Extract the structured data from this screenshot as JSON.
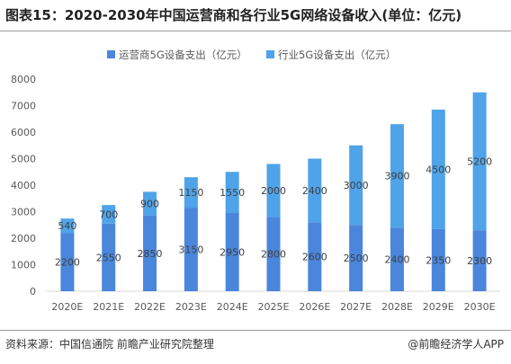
{
  "header": {
    "title": "图表15：2020-2030年中国运营商和各行业5G网络设备收入(单位：亿元)"
  },
  "footer": {
    "source": "资料来源：中国信通院 前瞻产业研究院整理",
    "brand": "@前瞻经济学人APP"
  },
  "colors": {
    "operator": "#4a86dc",
    "industry": "#4fa3e8",
    "axis_text": "#595959",
    "label_text": "#404040"
  },
  "chart_data": {
    "type": "bar",
    "stacked": true,
    "categories": [
      "2020E",
      "2021E",
      "2022E",
      "2023E",
      "2024E",
      "2025E",
      "2026E",
      "2027E",
      "2028E",
      "2029E",
      "2030E"
    ],
    "series": [
      {
        "name": "运营商5G设备支出（亿元）",
        "values": [
          2200,
          2550,
          2850,
          3150,
          2950,
          2800,
          2600,
          2500,
          2400,
          2350,
          2300
        ]
      },
      {
        "name": "行业5G设备支出（亿元）",
        "values": [
          540,
          700,
          900,
          1150,
          1550,
          2000,
          2400,
          3000,
          3900,
          4500,
          5200
        ]
      }
    ],
    "ylim": [
      0,
      8000
    ],
    "yticks": [
      0,
      1000,
      2000,
      3000,
      4000,
      5000,
      6000,
      7000,
      8000
    ],
    "legend_position": "top-center",
    "grid": false
  }
}
